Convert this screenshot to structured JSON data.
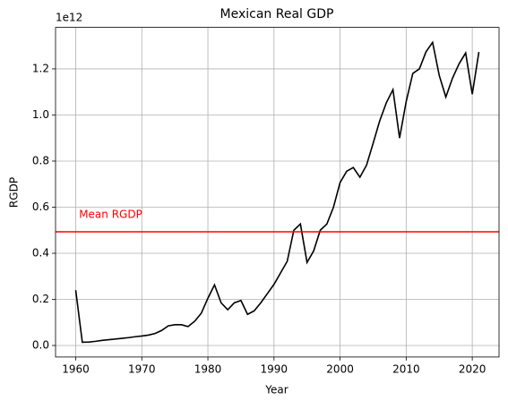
{
  "chart_data": {
    "type": "line",
    "title": "Mexican Real GDP",
    "xlabel": "Year",
    "ylabel": "RGDP",
    "offset_text": "1e12",
    "x": [
      1960,
      1961,
      1962,
      1963,
      1964,
      1965,
      1966,
      1967,
      1968,
      1969,
      1970,
      1971,
      1972,
      1973,
      1974,
      1975,
      1976,
      1977,
      1978,
      1979,
      1980,
      1981,
      1982,
      1983,
      1984,
      1985,
      1986,
      1987,
      1988,
      1989,
      1990,
      1991,
      1992,
      1993,
      1994,
      1995,
      1996,
      1997,
      1998,
      1999,
      2000,
      2001,
      2002,
      2003,
      2004,
      2005,
      2006,
      2007,
      2008,
      2009,
      2010,
      2011,
      2012,
      2013,
      2014,
      2015,
      2016,
      2017,
      2018,
      2019,
      2020,
      2021
    ],
    "series": [
      {
        "name": "RGDP",
        "color": "#000000",
        "values": [
          0.24,
          0.014,
          0.015,
          0.018,
          0.022,
          0.025,
          0.028,
          0.031,
          0.034,
          0.038,
          0.041,
          0.045,
          0.052,
          0.065,
          0.085,
          0.09,
          0.09,
          0.082,
          0.105,
          0.14,
          0.205,
          0.263,
          0.185,
          0.155,
          0.185,
          0.195,
          0.135,
          0.15,
          0.185,
          0.225,
          0.265,
          0.315,
          0.365,
          0.5,
          0.527,
          0.36,
          0.41,
          0.5,
          0.527,
          0.6,
          0.707,
          0.756,
          0.772,
          0.73,
          0.782,
          0.877,
          0.975,
          1.053,
          1.11,
          0.9,
          1.058,
          1.18,
          1.2,
          1.274,
          1.315,
          1.172,
          1.078,
          1.159,
          1.222,
          1.269,
          1.09,
          1.273
        ]
      }
    ],
    "hline": {
      "value": 0.493,
      "label": "Mean RGDP",
      "color": "#ff0000"
    },
    "xlim": [
      1956.95,
      2024.05
    ],
    "xticks": [
      1960,
      1970,
      1980,
      1990,
      2000,
      2010,
      2020
    ],
    "ylim": [
      -0.05,
      1.38
    ],
    "yticks": [
      {
        "value": 0,
        "label": "0.0"
      },
      {
        "value": 0.2,
        "label": "0.2"
      },
      {
        "value": 0.4,
        "label": "0.4"
      },
      {
        "value": 0.6,
        "label": "0.6"
      },
      {
        "value": 0.8,
        "label": "0.8"
      },
      {
        "value": 1,
        "label": "1.0"
      },
      {
        "value": 1.2,
        "label": "1.2"
      }
    ],
    "grid": true
  }
}
